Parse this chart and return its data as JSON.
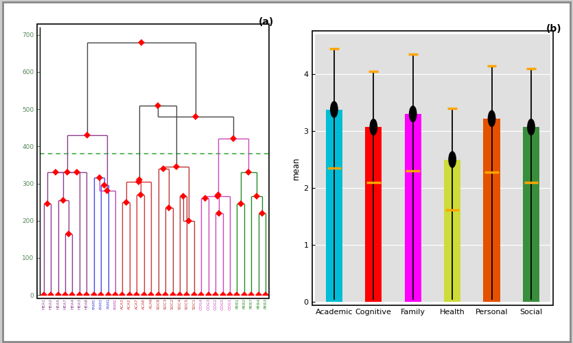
{
  "bar_categories": [
    "Academic",
    "Cognitive",
    "Family",
    "Health",
    "Personal",
    "Social"
  ],
  "bar_heights": [
    3.38,
    3.07,
    3.3,
    2.5,
    3.22,
    3.07
  ],
  "bar_colors": [
    "#00BCD4",
    "#FF0000",
    "#FF00FF",
    "#CDDC39",
    "#E65100",
    "#388E3C"
  ],
  "bar_upper_error": [
    4.45,
    4.05,
    4.35,
    3.4,
    4.15,
    4.1
  ],
  "bar_lower_error": [
    0.05,
    0.05,
    0.05,
    0.05,
    0.05,
    0.05
  ],
  "bar_mean_marker": [
    3.38,
    3.07,
    3.3,
    2.5,
    3.22,
    3.07
  ],
  "bar_orange_line": [
    2.35,
    2.1,
    2.3,
    1.62,
    2.28,
    2.1
  ],
  "bar_ylabel": "mean",
  "bar_ylim": [
    0,
    4.7
  ],
  "bar_yticks": [
    0,
    1,
    2,
    3,
    4
  ],
  "bar_title": "(b)",
  "dendro_title": "(a)",
  "dendro_labels": [
    "HEA1",
    "HEA2",
    "HEA5",
    "HEA7",
    "HEA4",
    "HEA3",
    "HEA8",
    "FAM5",
    "FAM3",
    "FAM1",
    "FAM2",
    "ACA3",
    "ACA2",
    "ACA7",
    "ACA8",
    "ACA6",
    "SOC8",
    "SOC3",
    "SOC2",
    "SOC4",
    "SOC5",
    "SOC1",
    "COG4",
    "COG3",
    "COG2",
    "COG5",
    "COG1",
    "PER1",
    "PER2",
    "PER7",
    "PER4",
    "PER3"
  ],
  "dendro_cutoff": 380,
  "dendro_ylim": [
    0,
    720
  ],
  "dendro_yticks": [
    0,
    100,
    200,
    300,
    400,
    500,
    600,
    700
  ]
}
